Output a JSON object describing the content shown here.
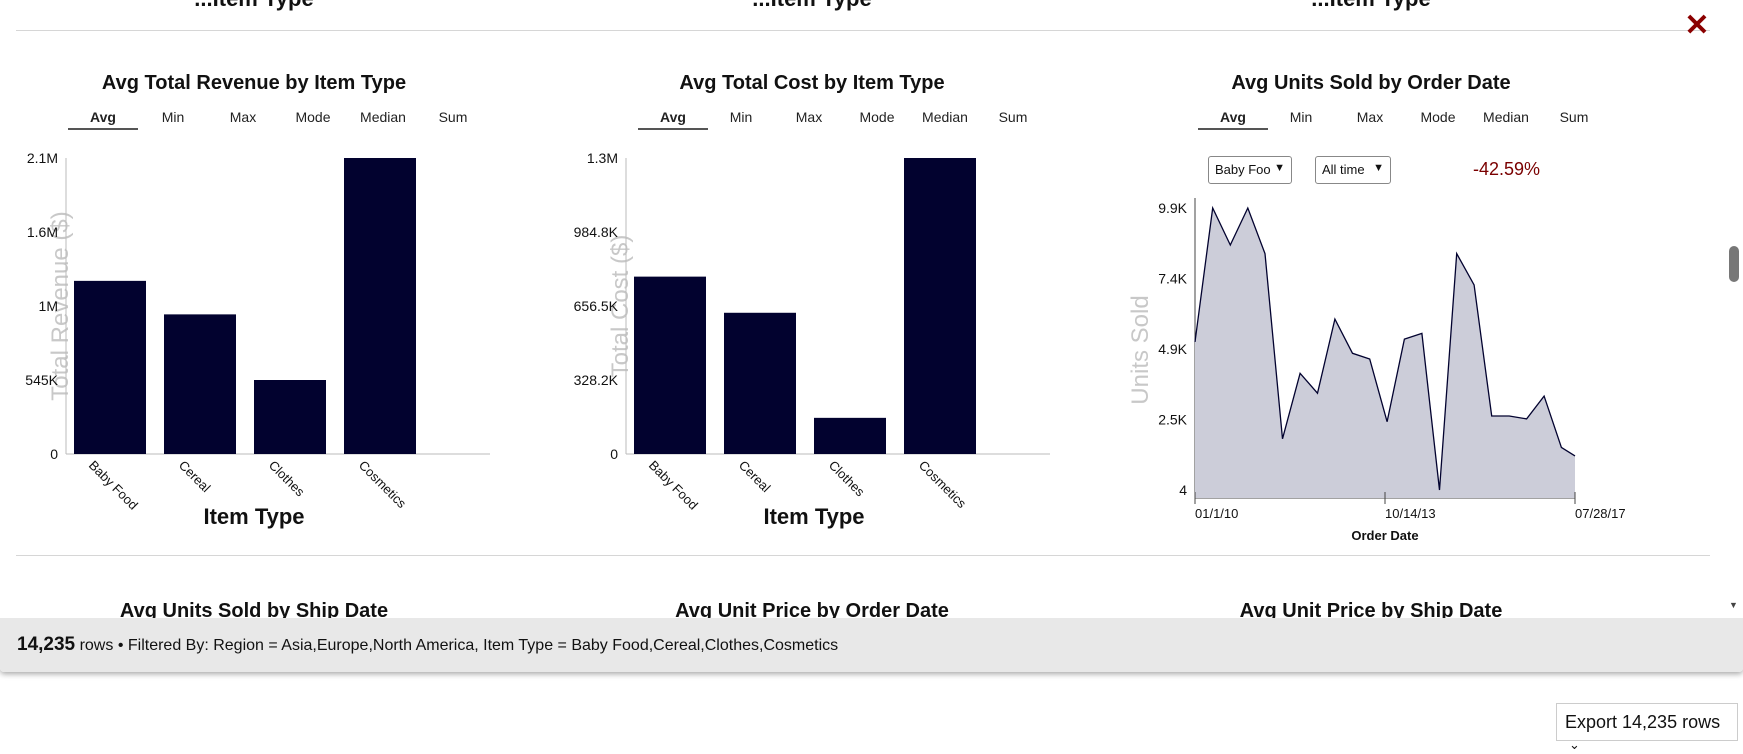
{
  "cut_titles": [
    "...Item Type",
    "...Item Type",
    "...Item Type"
  ],
  "charts": [
    {
      "title": "Avg Total Revenue by Item Type",
      "tabs": [
        "Avg",
        "Min",
        "Max",
        "Mode",
        "Median",
        "Sum"
      ],
      "active_tab": "Avg",
      "ylabel": "Total Revenue ($)",
      "xlabel": "Item Type",
      "yticks": [
        "2.1M",
        "1.6M",
        "1M",
        "545K",
        "0"
      ],
      "bar_color": "#02022f"
    },
    {
      "title": "Avg Total Cost by Item Type",
      "tabs": [
        "Avg",
        "Min",
        "Max",
        "Mode",
        "Median",
        "Sum"
      ],
      "active_tab": "Avg",
      "ylabel": "Total Cost ($)",
      "xlabel": "Item Type",
      "yticks": [
        "1.3M",
        "984.8K",
        "656.5K",
        "328.2K",
        "0"
      ],
      "bar_color": "#02022f"
    },
    {
      "title": "Avg Units Sold by Order Date",
      "tabs": [
        "Avg",
        "Min",
        "Max",
        "Mode",
        "Median",
        "Sum"
      ],
      "active_tab": "Avg",
      "ylabel": "Units Sold",
      "xlabel": "Order Date",
      "yticks": [
        "9.9K",
        "7.4K",
        "4.9K",
        "2.5K",
        "4"
      ],
      "xticks": [
        "01/1/10",
        "10/14/13",
        "07/28/17"
      ],
      "item_select": "Baby Foo",
      "time_select": "All time",
      "change_pct": "-42.59%",
      "fill_color": "#cccdd9",
      "line_color": "#02022f"
    }
  ],
  "chart_data": [
    {
      "type": "bar",
      "title": "Avg Total Revenue by Item Type",
      "categories": [
        "Baby Food",
        "Cereal",
        "Clothes",
        "Cosmetics"
      ],
      "values": [
        1240000,
        1000000,
        530000,
        2120000
      ],
      "xlabel": "Item Type",
      "ylabel": "Total Revenue ($)",
      "ylim": [
        0,
        2120000
      ],
      "grid": false
    },
    {
      "type": "bar",
      "title": "Avg Total Cost by Item Type",
      "categories": [
        "Baby Food",
        "Cereal",
        "Clothes",
        "Cosmetics"
      ],
      "values": [
        785000,
        625000,
        160000,
        1310000
      ],
      "xlabel": "Item Type",
      "ylabel": "Total Cost ($)",
      "ylim": [
        0,
        1310000
      ],
      "grid": false
    },
    {
      "type": "area",
      "title": "Avg Units Sold by Order Date",
      "x": [
        "2010-01-01",
        "2010-05-10",
        "2010-09-15",
        "2011-01-20",
        "2011-05-25",
        "2011-09-30",
        "2012-02-05",
        "2012-06-10",
        "2012-10-15",
        "2013-02-20",
        "2013-06-25",
        "2013-10-30",
        "2014-03-05",
        "2014-07-10",
        "2014-11-15",
        "2015-03-20",
        "2015-07-25",
        "2015-11-30",
        "2016-04-05",
        "2016-08-10",
        "2016-12-15",
        "2017-04-20",
        "2017-07-28"
      ],
      "values": [
        5200,
        9900,
        8600,
        9900,
        8300,
        1800,
        4100,
        3400,
        6000,
        4800,
        4600,
        2400,
        5300,
        5500,
        4,
        8300,
        7200,
        2600,
        2600,
        2500,
        3300,
        1500,
        1200
      ],
      "xlabel": "Order Date",
      "ylabel": "Units Sold",
      "ylim": [
        4,
        9900
      ],
      "grid": false
    }
  ],
  "bottom_titles": [
    "Avg Units Sold by Ship Date",
    "Avg Unit Price by Order Date",
    "Avg Unit Price by Ship Date"
  ],
  "footer": {
    "count": "14,235",
    "rows_word": "rows",
    "filter_text": "• Filtered By: Region = Asia,Europe,North America, Item Type = Baby Food,Cereal,Clothes,Cosmetics"
  },
  "export_label": "Export 14,235 rows",
  "close_icon": "close-icon"
}
